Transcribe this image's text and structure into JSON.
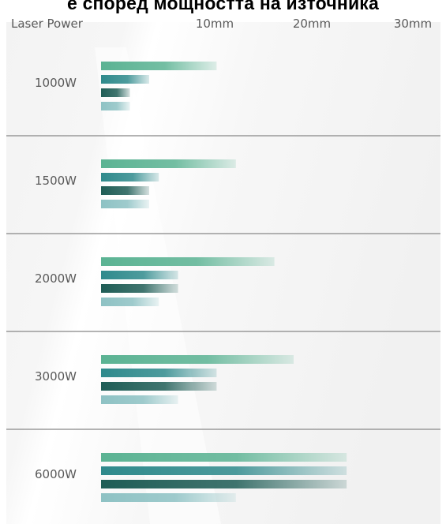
{
  "page_title": "е според мощността на източника",
  "chart_data": {
    "type": "bar",
    "orientation": "horizontal",
    "xlabel": "Laser Power",
    "x_ticks": [
      "10mm",
      "20mm",
      "30mm"
    ],
    "xlim": [
      0,
      30
    ],
    "categories": [
      "1000W",
      "1500W",
      "2000W",
      "3000W",
      "6000W"
    ],
    "series": [
      {
        "values": [
          12,
          14,
          18,
          20,
          25.5
        ]
      },
      {
        "values": [
          5,
          6,
          8,
          12,
          25.5
        ]
      },
      {
        "values": [
          3,
          5,
          8,
          12,
          25.5
        ]
      },
      {
        "values": [
          3,
          5,
          6,
          8,
          14
        ]
      }
    ],
    "series_colors": [
      "#5bb393",
      "#2f8a8c",
      "#1f5d56",
      "#8ec2c4"
    ],
    "legend": "none",
    "grid": false
  }
}
